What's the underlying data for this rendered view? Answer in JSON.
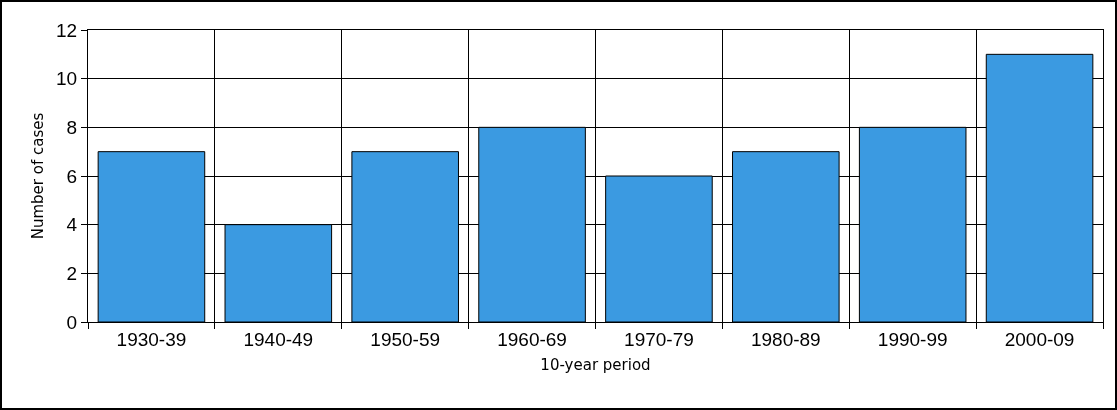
{
  "chart_data": {
    "type": "bar",
    "xlabel": "10-year period",
    "ylabel": "Number of cases",
    "categories": [
      "1930-39",
      "1940-49",
      "1950-59",
      "1960-69",
      "1970-79",
      "1980-89",
      "1990-99",
      "2000-09"
    ],
    "values": [
      7,
      4,
      7,
      8,
      6,
      7,
      8,
      11
    ],
    "color": "#3b9ae1",
    "ylim": [
      0,
      12
    ],
    "yticks": [
      0,
      2,
      4,
      6,
      8,
      10,
      12
    ],
    "grid": true,
    "legend": false
  }
}
